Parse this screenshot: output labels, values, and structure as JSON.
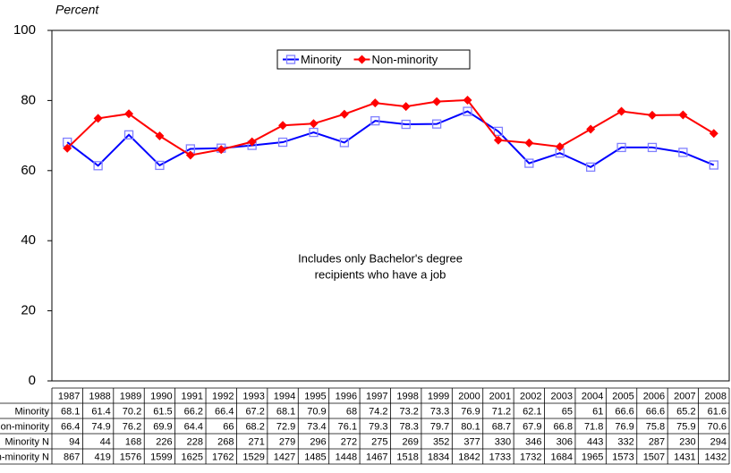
{
  "chart_data": {
    "type": "line",
    "y_label": "Percent",
    "categories": [
      "1987",
      "1988",
      "1989",
      "1990",
      "1991",
      "1992",
      "1993",
      "1994",
      "1995",
      "1996",
      "1997",
      "1998",
      "1999",
      "2000",
      "2001",
      "2002",
      "2003",
      "2004",
      "2005",
      "2006",
      "2007",
      "2008"
    ],
    "series": [
      {
        "name": "Minority",
        "color": "#0000ff",
        "marker": "square",
        "values": [
          68.1,
          61.4,
          70.2,
          61.5,
          66.2,
          66.4,
          67.2,
          68.1,
          70.9,
          68,
          74.2,
          73.2,
          73.3,
          76.9,
          71.2,
          62.1,
          65,
          61,
          66.6,
          66.6,
          65.2,
          61.6
        ]
      },
      {
        "name": "Non-minority",
        "color": "#ff0000",
        "marker": "diamond",
        "values": [
          66.4,
          74.9,
          76.2,
          69.9,
          64.4,
          66,
          68.2,
          72.9,
          73.4,
          76.1,
          79.3,
          78.3,
          79.7,
          80.1,
          68.7,
          67.9,
          66.8,
          71.8,
          76.9,
          75.8,
          75.9,
          70.6
        ]
      }
    ],
    "ylim": [
      0,
      100
    ],
    "yticks": [
      0,
      20,
      40,
      60,
      80,
      100
    ],
    "grid": false,
    "legend": "top",
    "annotation": [
      "Includes only Bachelor's degree",
      "recipients who have a job"
    ],
    "table": {
      "rows": [
        {
          "label": "Minority N",
          "values": [
            94,
            44,
            168,
            226,
            228,
            268,
            271,
            279,
            296,
            272,
            275,
            269,
            352,
            377,
            330,
            346,
            306,
            443,
            332,
            287,
            230,
            294
          ]
        },
        {
          "label": "Non-minority N",
          "values": [
            867,
            419,
            1576,
            1599,
            1625,
            1762,
            1529,
            1427,
            1485,
            1448,
            1467,
            1518,
            1834,
            1842,
            1733,
            1732,
            1684,
            1965,
            1573,
            1507,
            1431,
            1432
          ]
        }
      ]
    }
  }
}
